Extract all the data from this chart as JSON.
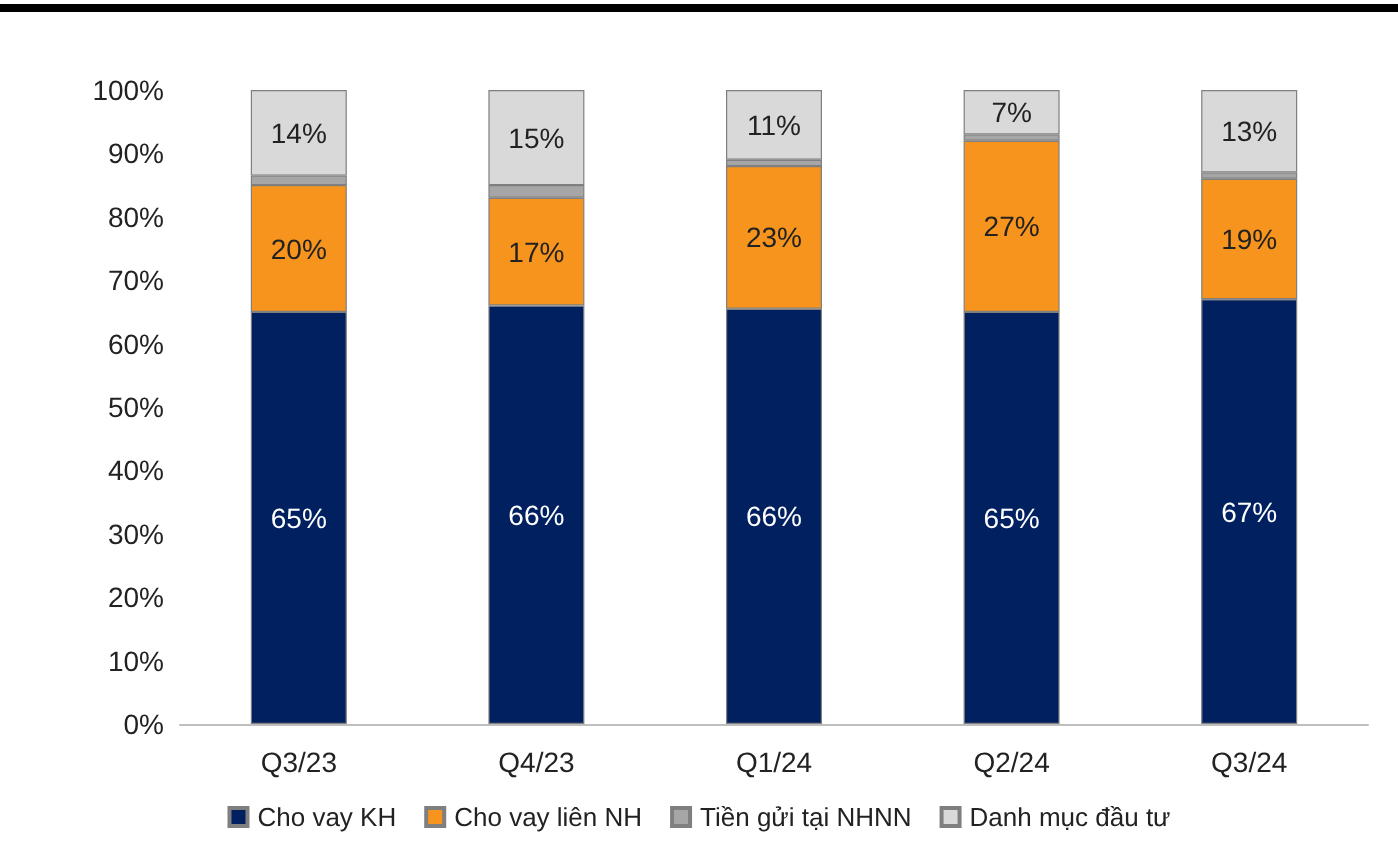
{
  "chart_data": {
    "type": "bar",
    "stacked": true,
    "categories": [
      "Q3/23",
      "Q4/23",
      "Q1/24",
      "Q2/24",
      "Q3/24"
    ],
    "series": [
      {
        "name": "Cho vay KH",
        "color": "#002060",
        "values": [
          65,
          66,
          65.5,
          65,
          67
        ],
        "value_labels": [
          "65%",
          "66%",
          "66%",
          "65%",
          "67%"
        ]
      },
      {
        "name": "Cho vay liên NH",
        "color": "#f7941d",
        "values": [
          20,
          17,
          22.5,
          27,
          19
        ],
        "value_labels": [
          "20%",
          "17%",
          "23%",
          "27%",
          "19%"
        ]
      },
      {
        "name": "Tiền gửi tại NHNN",
        "color": "#a6a6a6",
        "values": [
          1.5,
          2,
          1,
          1,
          1
        ]
      },
      {
        "name": "Danh mục đầu tư",
        "color": "#d9d9d9",
        "values": [
          13.5,
          15,
          11,
          7,
          13
        ],
        "value_labels": [
          "14%",
          "15%",
          "11%",
          "7%",
          "13%"
        ]
      }
    ],
    "ylim": [
      0,
      100
    ],
    "yticks": [
      {
        "value": 0,
        "label": "0%"
      },
      {
        "value": 10,
        "label": "10%"
      },
      {
        "value": 20,
        "label": "20%"
      },
      {
        "value": 30,
        "label": "30%"
      },
      {
        "value": 40,
        "label": "40%"
      },
      {
        "value": 50,
        "label": "50%"
      },
      {
        "value": 60,
        "label": "60%"
      },
      {
        "value": 70,
        "label": "70%"
      },
      {
        "value": 80,
        "label": "80%"
      },
      {
        "value": 90,
        "label": "90%"
      },
      {
        "value": 100,
        "label": "100%"
      }
    ],
    "grid": false,
    "legend": "bottom"
  }
}
